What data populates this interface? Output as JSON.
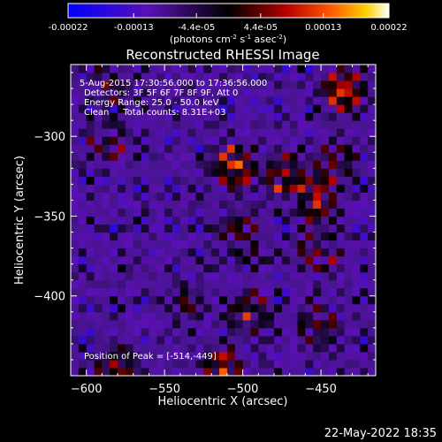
{
  "chart_data": {
    "type": "heatmap",
    "title": "Reconstructed RHESSI Image",
    "colorbar": {
      "ticks": [
        "-0.00022",
        "-0.00013",
        "-4.4e-05",
        "4.4e-05",
        "0.00013",
        "0.00022"
      ],
      "unit_base": "(photons cm",
      "unit_sup1": "-2",
      "unit_mid": " s",
      "unit_sup2": "-1",
      "unit_end": " asec",
      "unit_sup3": "-2",
      "unit_close": ")",
      "range": [
        -0.00022,
        0.00022
      ]
    },
    "xlabel": "Heliocentric X (arcsec)",
    "ylabel": "Heliocentric Y (arcsec)",
    "xlim": [
      -610,
      -415
    ],
    "ylim": [
      -450,
      -255
    ],
    "x_ticks": [
      -600,
      -550,
      -500,
      -450
    ],
    "y_ticks": [
      -300,
      -350,
      -400
    ],
    "annotations": {
      "time": "5-Aug-2015 17:30:56.000 to 17:36:56.000",
      "detectors": "Detectors: 3F 5F 6F 7F 8F 9F, Att 0",
      "energy": "Energy Range: 25.0 - 50.0 keV",
      "clean": "Clean     Total counts: 8.31E+03",
      "peak": "Position of Peak = [-514,-449]"
    },
    "peak": [
      -514,
      -449
    ],
    "sources": [
      {
        "x": -435,
        "y": -270,
        "amp": 1.0
      },
      {
        "x": -505,
        "y": -318,
        "amp": 0.95
      },
      {
        "x": -474,
        "y": -323,
        "amp": 0.75
      },
      {
        "x": -453,
        "y": -340,
        "amp": 0.8
      },
      {
        "x": -451,
        "y": -371,
        "amp": 0.55
      },
      {
        "x": -441,
        "y": -316,
        "amp": 0.6
      },
      {
        "x": -501,
        "y": -361,
        "amp": 0.5
      },
      {
        "x": -496,
        "y": -411,
        "amp": 0.7
      },
      {
        "x": -453,
        "y": -418,
        "amp": 0.55
      },
      {
        "x": -581,
        "y": -445,
        "amp": 0.7
      },
      {
        "x": -513,
        "y": -447,
        "amp": 0.85
      },
      {
        "x": -586,
        "y": -302,
        "amp": 0.45
      },
      {
        "x": -586,
        "y": -268,
        "amp": 0.35
      },
      {
        "x": -536,
        "y": -405,
        "amp": 0.4
      }
    ]
  },
  "footer": {
    "timestamp": "22-May-2022 18:35"
  }
}
